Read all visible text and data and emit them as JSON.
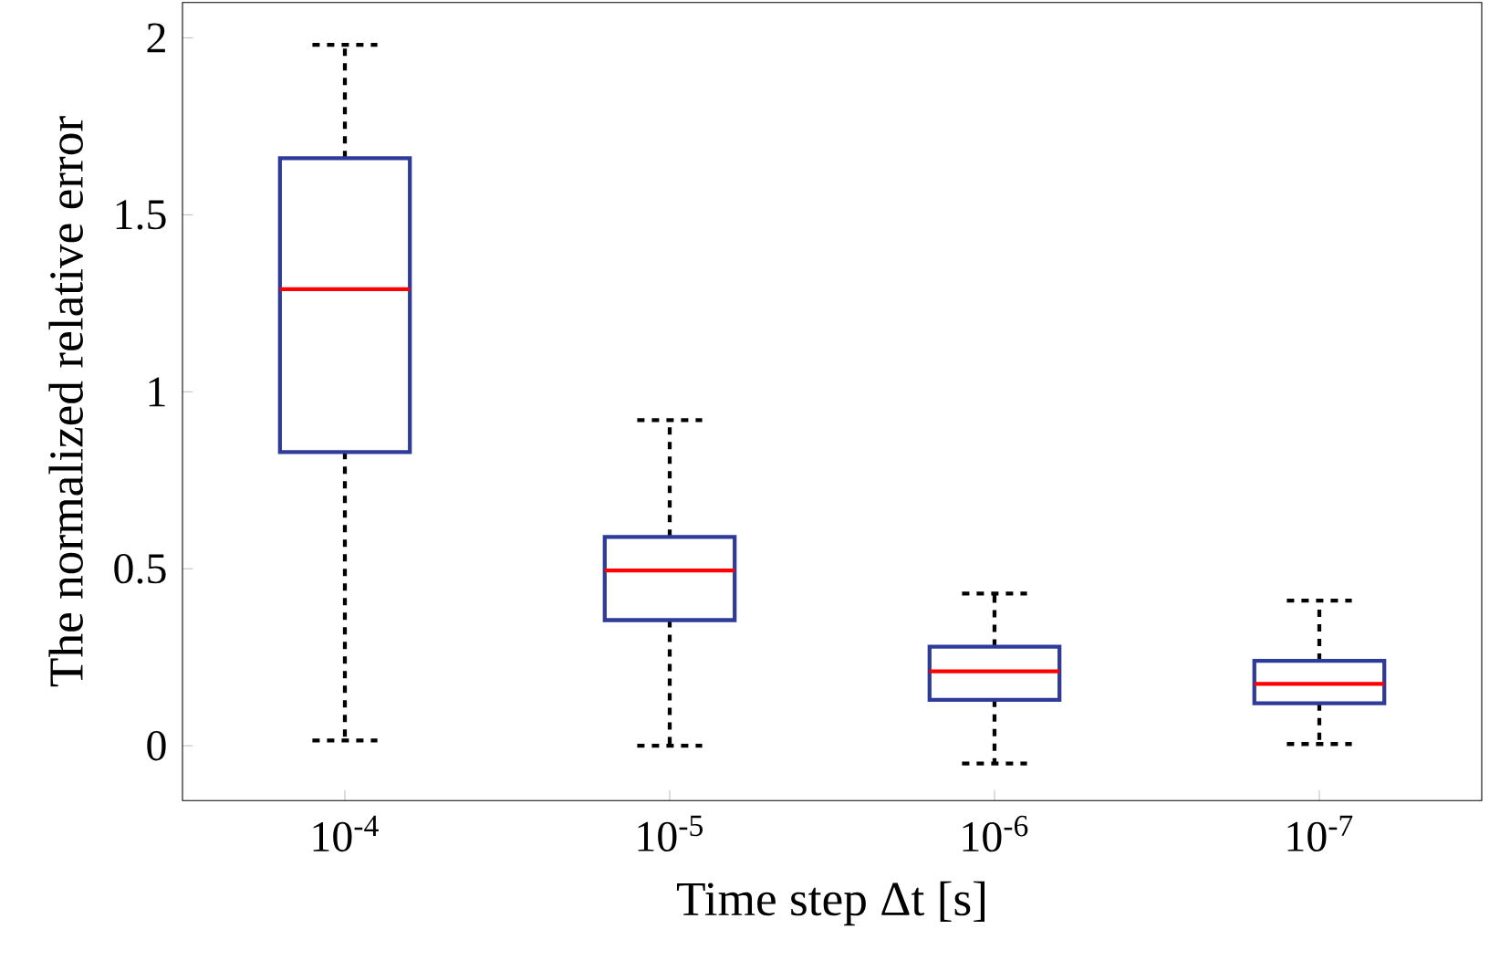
{
  "chart_data": {
    "type": "box",
    "xlabel": "Time step Δt [s]",
    "ylabel": "The normalized relative error",
    "categories": [
      "10$^{-4}$",
      "10$^{-5}$",
      "10$^{-6}$",
      "10$^{-7}$"
    ],
    "ylim": [
      -0.155,
      2.1
    ],
    "yticks": [
      0,
      0.5,
      1,
      1.5,
      2
    ],
    "grid": false,
    "series": [
      {
        "color": "#2e3b9b",
        "boxes": [
          {
            "low": 0.015,
            "q1": 0.83,
            "median": 1.29,
            "q3": 1.66,
            "high": 1.98
          },
          {
            "low": 0.0,
            "q1": 0.355,
            "median": 0.495,
            "q3": 0.59,
            "high": 0.92
          },
          {
            "low": -0.05,
            "q1": 0.13,
            "median": 0.21,
            "q3": 0.28,
            "high": 0.43
          },
          {
            "low": 0.005,
            "q1": 0.12,
            "median": 0.175,
            "q3": 0.24,
            "high": 0.41
          }
        ]
      }
    ]
  }
}
